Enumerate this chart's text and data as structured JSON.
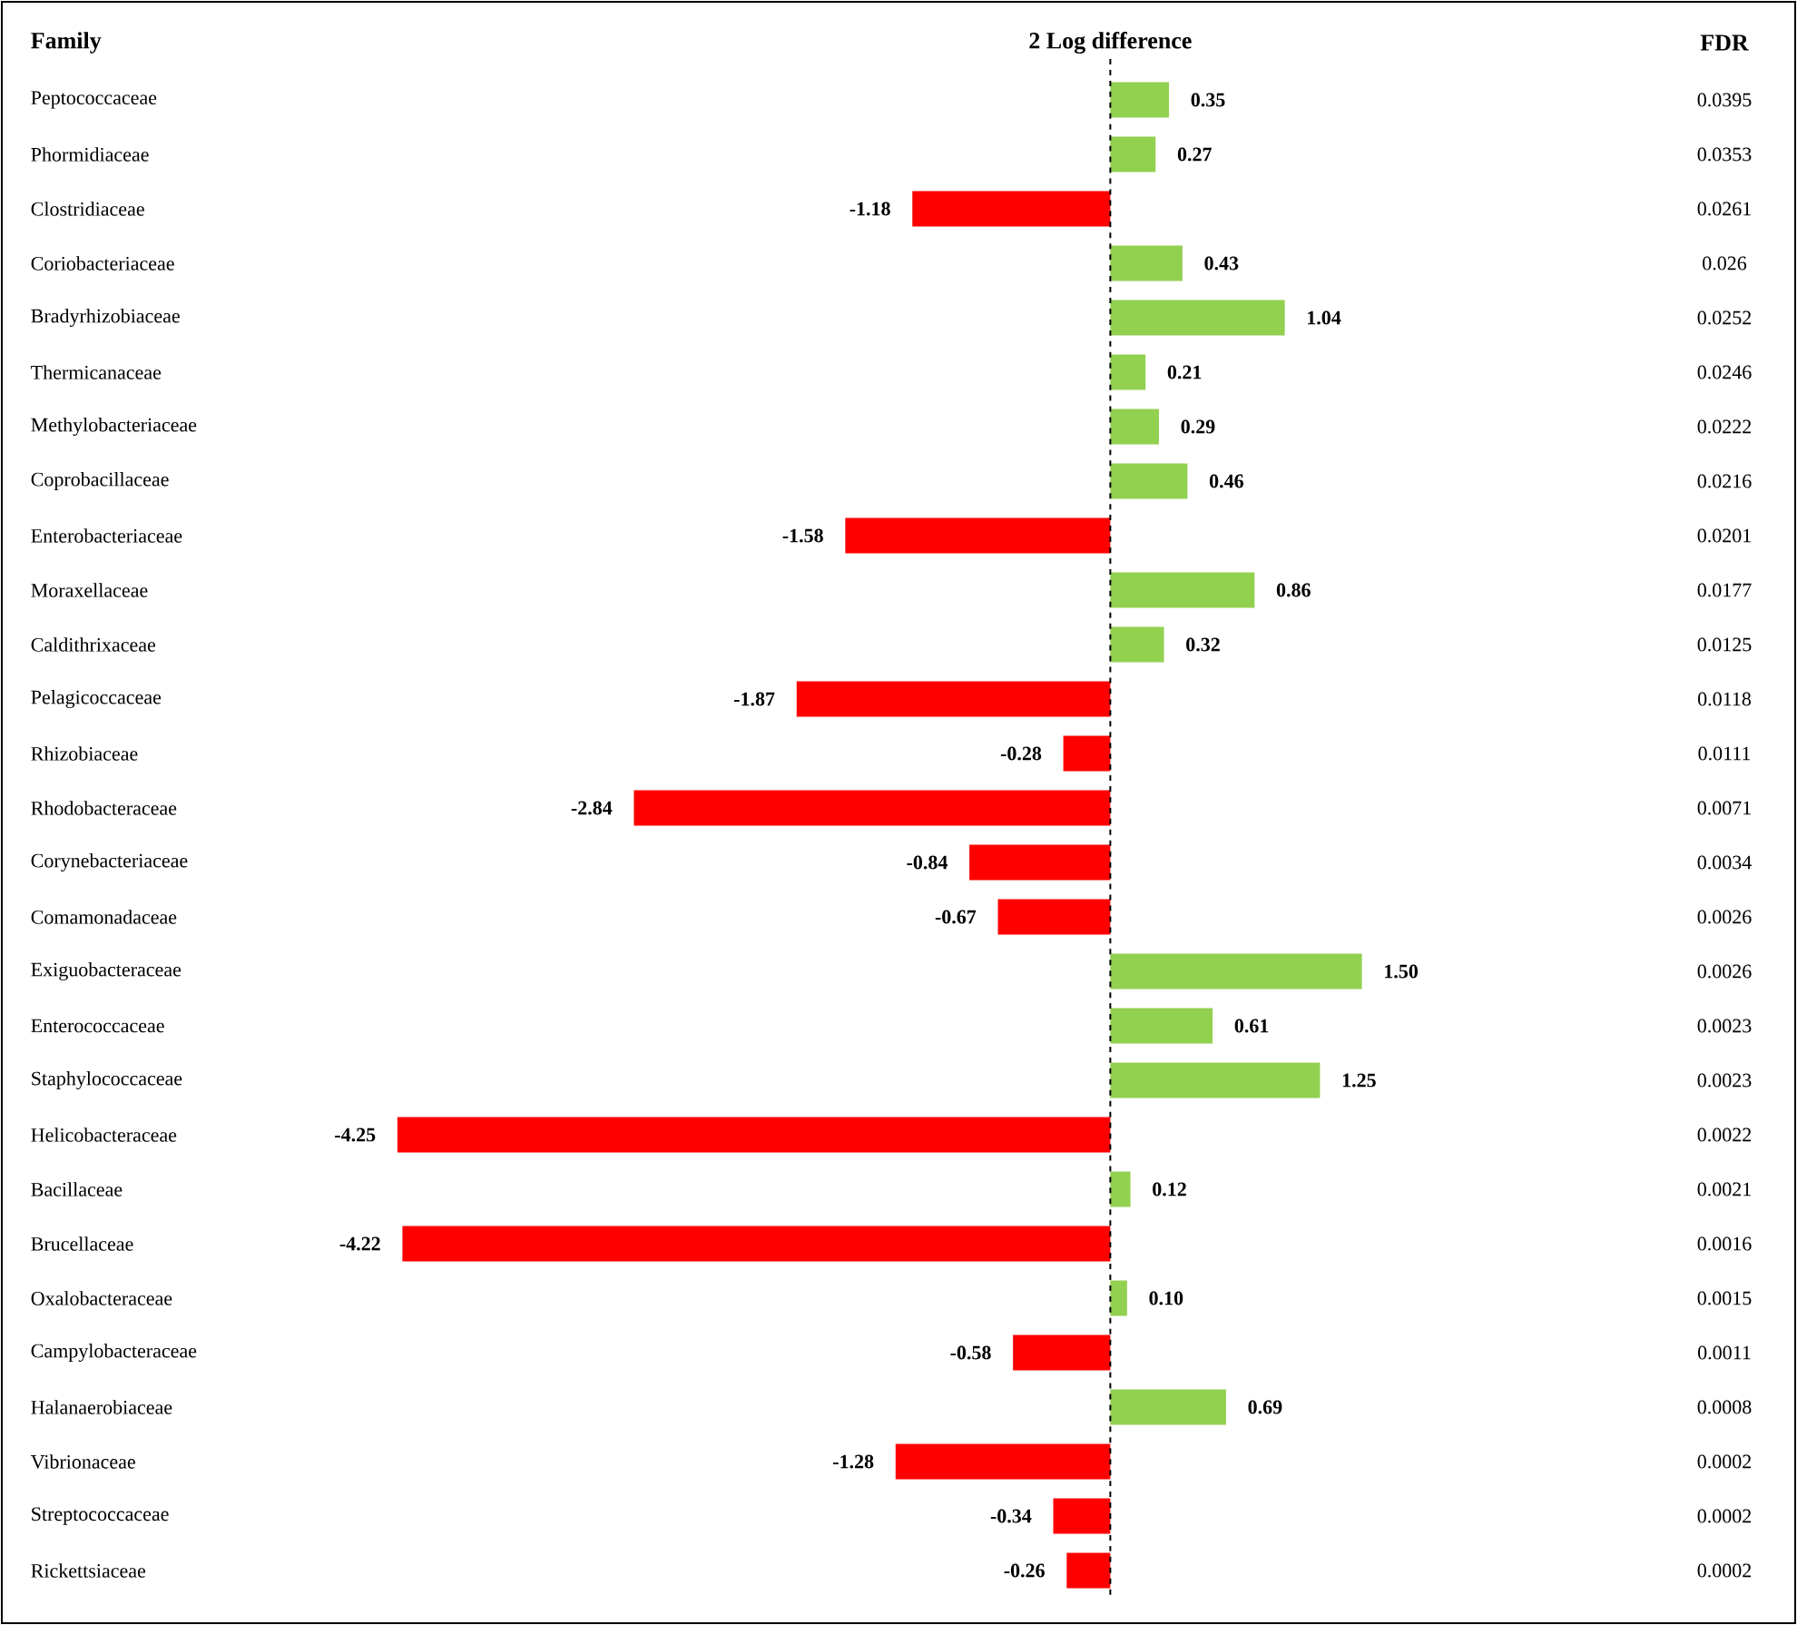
{
  "chart_data": {
    "type": "bar",
    "orientation": "horizontal",
    "title": "2 Log difference",
    "ylabel": "Family",
    "categories": [
      "Peptococcaceae",
      "Phormidiaceae",
      "Clostridiaceae",
      "Coriobacteriaceae",
      "Bradyrhizobiaceae",
      "Thermicanaceae",
      "Methylobacteriaceae",
      "Coprobacillaceae",
      "Enterobacteriaceae",
      "Moraxellaceae",
      "Caldithrixaceae",
      "Pelagicoccaceae",
      "Rhizobiaceae",
      "Rhodobacteraceae",
      "Corynebacteriaceae",
      "Comamonadaceae",
      "Exiguobacteraceae",
      "Enterococcaceae",
      "Staphylococcaceae",
      "Helicobacteraceae",
      "Bacillaceae",
      "Brucellaceae",
      "Oxalobacteraceae",
      "Campylobacteraceae",
      "Halanaerobiaceae",
      "Vibrionaceae",
      "Streptococcaceae",
      "Rickettsiaceae"
    ],
    "values": [
      0.35,
      0.27,
      -1.18,
      0.43,
      1.04,
      0.21,
      0.29,
      0.46,
      -1.58,
      0.86,
      0.32,
      -1.87,
      -0.28,
      -2.84,
      -0.84,
      -0.67,
      1.5,
      0.61,
      1.25,
      -4.25,
      0.12,
      -4.22,
      0.1,
      -0.58,
      0.69,
      -1.28,
      -0.34,
      -0.26
    ],
    "value_labels": [
      "0.35",
      "0.27",
      "-1.18",
      "0.43",
      "1.04",
      "0.21",
      "0.29",
      "0.46",
      "-1.58",
      "0.86",
      "0.32",
      "-1.87",
      "-0.28",
      "-2.84",
      "-0.84",
      "-0.67",
      "1.50",
      "0.61",
      "1.25",
      "-4.25",
      "0.12",
      "-4.22",
      "0.10",
      "-0.58",
      "0.69",
      "-1.28",
      "-0.34",
      "-0.26"
    ],
    "colors": [
      "#92d050",
      "#92d050",
      "#ff0000",
      "#92d050",
      "#92d050",
      "#92d050",
      "#92d050",
      "#92d050",
      "#ff0000",
      "#92d050",
      "#92d050",
      "#ff0000",
      "#ff0000",
      "#ff0000",
      "#ff0000",
      "#ff0000",
      "#92d050",
      "#92d050",
      "#92d050",
      "#ff0000",
      "#92d050",
      "#ff0000",
      "#92d050",
      "#ff0000",
      "#92d050",
      "#ff0000",
      "#ff0000",
      "#ff0000"
    ],
    "annotations": [
      "FDR",
      "0.0395",
      "0.0353",
      "0.0261",
      "0.026",
      "0.0252",
      "0.0246",
      "0.0222",
      "0.0216",
      "0.0201",
      "0.0177",
      "0.0125",
      "0.0118",
      "0.0111",
      "0.0071",
      "0.0034",
      "0.0026",
      "0.0026",
      "0.0023",
      "0.0023",
      "0.0022",
      "0.0021",
      "0.0016",
      "0.0015",
      "0.0011",
      "0.0008",
      "0.0002",
      "0.0002",
      "0.0002"
    ],
    "ref_lines": [
      {
        "axis": "x",
        "value": 0,
        "line_style": "dashed"
      }
    ],
    "tick_labels": "y"
  }
}
